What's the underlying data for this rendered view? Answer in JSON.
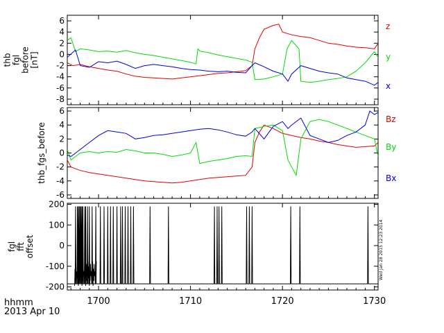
{
  "chart_data": [
    {
      "type": "line",
      "panel": "top",
      "ylabel_lines": [
        "thb",
        "fgl",
        "before",
        "[nT]"
      ],
      "ylim": [
        -9,
        7
      ],
      "yticks": [
        -8,
        -6,
        -4,
        -2,
        0,
        2,
        4,
        6
      ],
      "xlim": [
        1696.6,
        1730.4
      ],
      "series": [
        {
          "name": "z",
          "color": "#e00000",
          "points": [
            [
              1696.6,
              -1.5
            ],
            [
              1697.2,
              -2.0
            ],
            [
              1698,
              -1.8
            ],
            [
              1699,
              -2.2
            ],
            [
              1700,
              -2.5
            ],
            [
              1701,
              -2.8
            ],
            [
              1702,
              -3.0
            ],
            [
              1703,
              -3.5
            ],
            [
              1704,
              -3.9
            ],
            [
              1705,
              -4.1
            ],
            [
              1706,
              -4.2
            ],
            [
              1707,
              -4.3
            ],
            [
              1708,
              -4.4
            ],
            [
              1709,
              -4.2
            ],
            [
              1710,
              -4.0
            ],
            [
              1711,
              -3.8
            ],
            [
              1712,
              -3.6
            ],
            [
              1713,
              -3.4
            ],
            [
              1714,
              -3.3
            ],
            [
              1715,
              -3.1
            ],
            [
              1716,
              -2.9
            ],
            [
              1716.7,
              -2.0
            ],
            [
              1717,
              1.0
            ],
            [
              1717.5,
              3.0
            ],
            [
              1718,
              4.5
            ],
            [
              1719,
              5.2
            ],
            [
              1719.6,
              5.4
            ],
            [
              1720,
              4.0
            ],
            [
              1721,
              3.5
            ],
            [
              1722,
              3.2
            ],
            [
              1723,
              3.0
            ],
            [
              1724,
              2.5
            ],
            [
              1725,
              2.0
            ],
            [
              1726,
              1.8
            ],
            [
              1727,
              1.5
            ],
            [
              1728,
              1.3
            ],
            [
              1729,
              1.2
            ],
            [
              1730,
              1.0
            ],
            [
              1730.4,
              2.0
            ]
          ]
        },
        {
          "name": "y",
          "color": "#00dd00",
          "points": [
            [
              1696.6,
              2.5
            ],
            [
              1697,
              3.0
            ],
            [
              1697.5,
              0.5
            ],
            [
              1698,
              1.0
            ],
            [
              1699,
              0.8
            ],
            [
              1700,
              0.5
            ],
            [
              1701,
              0.6
            ],
            [
              1702,
              0.4
            ],
            [
              1703,
              0.7
            ],
            [
              1704,
              0.3
            ],
            [
              1705,
              0.0
            ],
            [
              1706,
              -0.2
            ],
            [
              1707,
              -0.5
            ],
            [
              1708,
              -0.8
            ],
            [
              1709,
              -1.1
            ],
            [
              1710,
              -1.4
            ],
            [
              1710.6,
              -1.7
            ],
            [
              1710.8,
              1.0
            ],
            [
              1711,
              0.6
            ],
            [
              1712,
              0.3
            ],
            [
              1713,
              -0.1
            ],
            [
              1714,
              -0.4
            ],
            [
              1715,
              -0.7
            ],
            [
              1716,
              -1.0
            ],
            [
              1716.7,
              -1.4
            ],
            [
              1717,
              -4.5
            ],
            [
              1718,
              -4.4
            ],
            [
              1719,
              -4.0
            ],
            [
              1720,
              -3.5
            ],
            [
              1720.5,
              1.0
            ],
            [
              1721,
              2.5
            ],
            [
              1721.8,
              1.0
            ],
            [
              1722,
              -4.8
            ],
            [
              1723,
              -5.0
            ],
            [
              1724,
              -4.8
            ],
            [
              1725,
              -4.5
            ],
            [
              1726,
              -4.3
            ],
            [
              1727,
              -4.0
            ],
            [
              1728,
              -3.0
            ],
            [
              1729,
              -1.5
            ],
            [
              1730,
              0.5
            ],
            [
              1730.4,
              -0.5
            ]
          ]
        },
        {
          "name": "x",
          "color": "#0000dd",
          "points": [
            [
              1696.6,
              -0.5
            ],
            [
              1697.5,
              0.8
            ],
            [
              1698,
              -2.0
            ],
            [
              1699,
              -2.3
            ],
            [
              1700,
              -1.3
            ],
            [
              1701,
              -1.5
            ],
            [
              1702,
              -1.2
            ],
            [
              1703,
              -1.8
            ],
            [
              1704,
              -2.5
            ],
            [
              1705,
              -2.0
            ],
            [
              1706,
              -1.8
            ],
            [
              1707,
              -2.0
            ],
            [
              1708,
              -2.2
            ],
            [
              1709,
              -2.5
            ],
            [
              1710,
              -2.7
            ],
            [
              1711,
              -2.8
            ],
            [
              1712,
              -3.0
            ],
            [
              1713,
              -3.1
            ],
            [
              1714,
              -3.0
            ],
            [
              1715,
              -3.2
            ],
            [
              1716,
              -3.3
            ],
            [
              1716.7,
              -2.0
            ],
            [
              1717,
              -1.5
            ],
            [
              1718,
              -2.2
            ],
            [
              1719,
              -3.0
            ],
            [
              1720,
              -3.5
            ],
            [
              1720.6,
              -4.8
            ],
            [
              1721,
              -3.5
            ],
            [
              1722,
              -2.0
            ],
            [
              1723,
              -2.5
            ],
            [
              1724,
              -3.0
            ],
            [
              1725,
              -3.3
            ],
            [
              1726,
              -3.5
            ],
            [
              1727,
              -4.2
            ],
            [
              1728,
              -4.5
            ],
            [
              1729,
              -4.8
            ],
            [
              1730,
              -5.5
            ],
            [
              1730.4,
              -5.0
            ]
          ]
        }
      ],
      "legend": [
        {
          "label": "z",
          "color": "#e00000"
        },
        {
          "label": "y",
          "color": "#00dd00"
        },
        {
          "label": "x",
          "color": "#0000dd"
        }
      ]
    },
    {
      "type": "line",
      "panel": "middle",
      "ylabel_lines": [
        "thb_fgs_before"
      ],
      "ylim": [
        -6.5,
        6.5
      ],
      "yticks": [
        -6,
        -4,
        -2,
        0,
        2,
        4,
        6
      ],
      "xlim": [
        1696.6,
        1730.4
      ],
      "series": [
        {
          "name": "Bz",
          "color": "#e00000",
          "points": [
            [
              1696.6,
              -1.0
            ],
            [
              1697,
              -2.0
            ],
            [
              1698,
              -2.5
            ],
            [
              1699,
              -2.8
            ],
            [
              1700,
              -3.0
            ],
            [
              1701,
              -3.2
            ],
            [
              1702,
              -3.4
            ],
            [
              1703,
              -3.6
            ],
            [
              1704,
              -3.8
            ],
            [
              1705,
              -4.0
            ],
            [
              1706,
              -4.1
            ],
            [
              1707,
              -4.2
            ],
            [
              1708,
              -4.3
            ],
            [
              1709,
              -4.2
            ],
            [
              1710,
              -4.0
            ],
            [
              1711,
              -3.8
            ],
            [
              1712,
              -3.6
            ],
            [
              1713,
              -3.5
            ],
            [
              1714,
              -3.4
            ],
            [
              1715,
              -3.3
            ],
            [
              1716,
              -3.2
            ],
            [
              1716.7,
              -2.0
            ],
            [
              1717,
              1.5
            ],
            [
              1717.5,
              3.0
            ],
            [
              1718,
              4.0
            ],
            [
              1719,
              3.5
            ],
            [
              1720,
              2.8
            ],
            [
              1721,
              2.5
            ],
            [
              1722,
              2.2
            ],
            [
              1723,
              2.0
            ],
            [
              1724,
              1.7
            ],
            [
              1725,
              1.5
            ],
            [
              1726,
              1.2
            ],
            [
              1727,
              1.0
            ],
            [
              1728,
              0.8
            ],
            [
              1729,
              0.9
            ],
            [
              1730,
              1.0
            ],
            [
              1730.4,
              1.5
            ]
          ]
        },
        {
          "name": "By",
          "color": "#00dd00",
          "points": [
            [
              1696.6,
              0.5
            ],
            [
              1697,
              -1.0
            ],
            [
              1698,
              0.0
            ],
            [
              1699,
              0.2
            ],
            [
              1700,
              0.0
            ],
            [
              1701,
              0.2
            ],
            [
              1702,
              0.1
            ],
            [
              1703,
              0.5
            ],
            [
              1704,
              0.3
            ],
            [
              1705,
              0.0
            ],
            [
              1706,
              0.0
            ],
            [
              1707,
              -0.2
            ],
            [
              1708,
              -0.5
            ],
            [
              1709,
              -0.3
            ],
            [
              1710,
              0.0
            ],
            [
              1710.6,
              1.5
            ],
            [
              1711,
              -1.5
            ],
            [
              1712,
              -1.2
            ],
            [
              1713,
              -1.0
            ],
            [
              1714,
              -0.8
            ],
            [
              1715,
              -0.5
            ],
            [
              1716,
              -0.4
            ],
            [
              1716.7,
              -0.5
            ],
            [
              1717,
              3.5
            ],
            [
              1718,
              3.8
            ],
            [
              1719,
              4.0
            ],
            [
              1720,
              3.2
            ],
            [
              1720.6,
              -1.0
            ],
            [
              1721,
              -2.0
            ],
            [
              1721.5,
              -3.2
            ],
            [
              1722,
              2.0
            ],
            [
              1723,
              4.5
            ],
            [
              1724,
              4.8
            ],
            [
              1725,
              4.5
            ],
            [
              1726,
              4.0
            ],
            [
              1727,
              3.5
            ],
            [
              1728,
              3.0
            ],
            [
              1729,
              2.5
            ],
            [
              1730,
              2.0
            ],
            [
              1730.4,
              -0.5
            ]
          ]
        },
        {
          "name": "Bx",
          "color": "#0000dd",
          "points": [
            [
              1696.6,
              -0.3
            ],
            [
              1697,
              -0.5
            ],
            [
              1698,
              0.5
            ],
            [
              1699,
              1.5
            ],
            [
              1700,
              2.5
            ],
            [
              1701,
              3.2
            ],
            [
              1702,
              3.0
            ],
            [
              1703,
              2.8
            ],
            [
              1704,
              2.0
            ],
            [
              1705,
              2.2
            ],
            [
              1706,
              2.5
            ],
            [
              1707,
              2.6
            ],
            [
              1708,
              2.8
            ],
            [
              1709,
              3.0
            ],
            [
              1710,
              3.2
            ],
            [
              1711,
              3.4
            ],
            [
              1712,
              3.5
            ],
            [
              1713,
              3.3
            ],
            [
              1714,
              3.0
            ],
            [
              1715,
              2.6
            ],
            [
              1716,
              2.4
            ],
            [
              1716.7,
              3.0
            ],
            [
              1717,
              3.5
            ],
            [
              1718,
              2.0
            ],
            [
              1719,
              3.8
            ],
            [
              1720,
              4.5
            ],
            [
              1720.6,
              3.5
            ],
            [
              1721,
              4.0
            ],
            [
              1722,
              5.0
            ],
            [
              1723,
              2.5
            ],
            [
              1724,
              2.0
            ],
            [
              1725,
              1.5
            ],
            [
              1726,
              1.8
            ],
            [
              1727,
              2.5
            ],
            [
              1728,
              3.0
            ],
            [
              1729,
              4.0
            ],
            [
              1729.5,
              6.0
            ],
            [
              1730,
              5.5
            ],
            [
              1730.4,
              5.8
            ]
          ]
        }
      ],
      "legend": [
        {
          "label": "Bz",
          "color": "#e00000"
        },
        {
          "label": "By",
          "color": "#00dd00"
        },
        {
          "label": "Bx",
          "color": "#0000dd"
        }
      ]
    },
    {
      "type": "line",
      "panel": "bottom",
      "ylabel_lines": [
        "fgl",
        "fft",
        "offset"
      ],
      "ylim": [
        -215,
        205
      ],
      "yticks": [
        -200,
        -100,
        0,
        100,
        200
      ],
      "xlim": [
        1696.6,
        1730.4
      ],
      "baseline": -185,
      "spike_top": 190,
      "spikes": [
        1697.5,
        1697.7,
        1697.8,
        1697.9,
        1698.0,
        1698.1,
        1698.2,
        1698.3,
        1698.5,
        1698.6,
        1698.8,
        1699.0,
        1699.3,
        1699.7,
        1700.2,
        1700.6,
        1701.0,
        1701.3,
        1701.6,
        1702.0,
        1702.4,
        1702.6,
        1702.9,
        1703.2,
        1703.5,
        1703.8,
        1705.6,
        1707.6,
        1712.6,
        1712.9,
        1713.1,
        1713.4,
        1716.1,
        1716.4,
        1716.7,
        1720.9,
        1721.9,
        1729.3
      ],
      "side_annotation": "Wed Jan 28 2015 12:23 2014"
    }
  ],
  "x_axis": {
    "ticks": [
      1700,
      1710,
      1720,
      1730
    ],
    "footer_line1": "hhmm",
    "footer_line2": "2013 Apr 10"
  }
}
